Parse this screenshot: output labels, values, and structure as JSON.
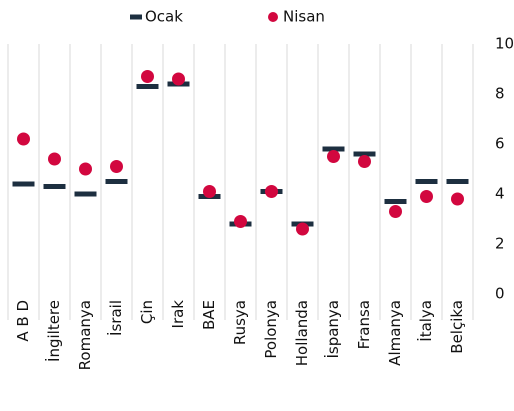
{
  "chart_data": {
    "type": "dot",
    "categories": [
      "A B D",
      "İngiltere",
      "Romanya",
      "İsrail",
      "Çin",
      "Irak",
      "BAE",
      "Rusya",
      "Polonya",
      "Hollanda",
      "İspanya",
      "Fransa",
      "Almanya",
      "İtalya",
      "Belçika"
    ],
    "series": [
      {
        "name": "Ocak",
        "color": "#1d2f40",
        "marker": "dash",
        "values": [
          4.4,
          4.3,
          4.0,
          4.5,
          8.3,
          8.4,
          3.9,
          2.8,
          4.1,
          2.8,
          5.8,
          5.6,
          3.7,
          4.5,
          4.5
        ]
      },
      {
        "name": "Nisan",
        "color": "#d2073f",
        "marker": "circle",
        "values": [
          6.2,
          5.4,
          5.0,
          5.1,
          8.7,
          8.6,
          4.1,
          2.9,
          4.1,
          2.6,
          5.5,
          5.3,
          3.3,
          3.9,
          3.8
        ]
      }
    ],
    "ylim": [
      0,
      10
    ],
    "yticks": [
      0,
      2,
      4,
      6,
      8,
      10
    ],
    "legend": "top"
  }
}
